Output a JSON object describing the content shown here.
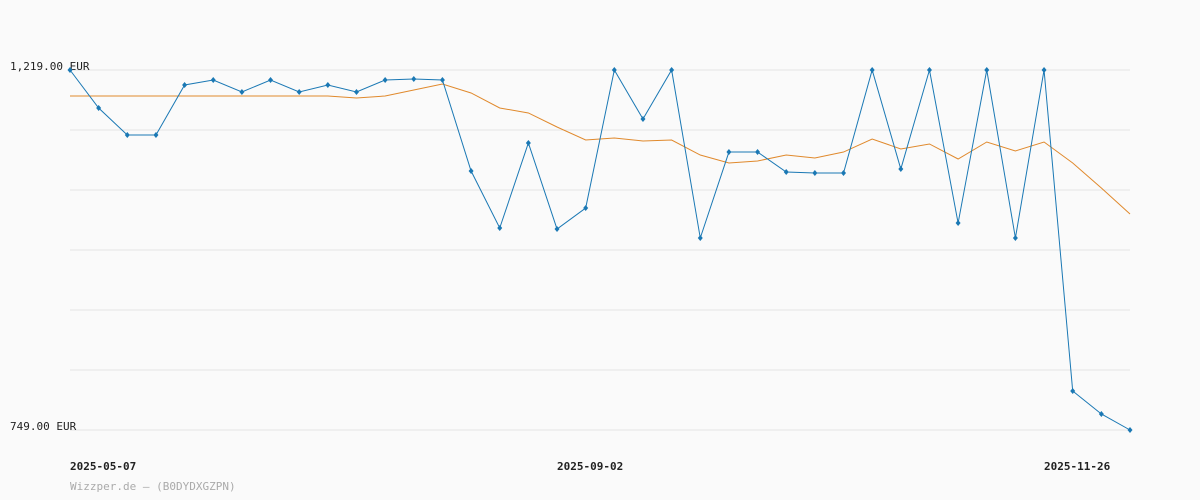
{
  "chart_data": {
    "type": "line",
    "categories": [
      "2025-05-07",
      null,
      null,
      null,
      null,
      null,
      null,
      null,
      null,
      null,
      null,
      null,
      null,
      null,
      null,
      null,
      null,
      "2025-09-02",
      null,
      null,
      null,
      null,
      null,
      null,
      null,
      null,
      null,
      null,
      null,
      null,
      null,
      null,
      null,
      null,
      "2025-11-26",
      null,
      null,
      null
    ],
    "series": [
      {
        "color": "#1a78b4",
        "markers": true,
        "values": [
          1219,
          1169.4,
          1134.1,
          1134.1,
          1199.4,
          1205.9,
          1190.3,
          1205.9,
          1190.3,
          1199.4,
          1190.3,
          1205.9,
          1207.2,
          1205.9,
          1087.1,
          1012.7,
          1123.7,
          1011.4,
          1038.8,
          1219,
          1155,
          1219,
          999.7,
          1111.9,
          1111.9,
          1085.8,
          1084.5,
          1084.5,
          1219,
          1089.7,
          1219,
          1019.2,
          1219,
          999.7,
          1219,
          799.9,
          769.9,
          749
        ]
      },
      {
        "color": "#e0892c",
        "markers": false,
        "values": [
          1185.1,
          1185.1,
          1185.1,
          1185.1,
          1185.1,
          1185.1,
          1185.1,
          1185.1,
          1185.1,
          1185.1,
          1182.4,
          1185.1,
          1192.9,
          1200.7,
          1189,
          1169.4,
          1162.9,
          1144.6,
          1127.6,
          1130.2,
          1126.3,
          1127.6,
          1108,
          1097.6,
          1100.2,
          1108,
          1104.1,
          1111.9,
          1128.9,
          1115.9,
          1122.4,
          1102.8,
          1125,
          1113.3,
          1125,
          1097.6,
          1065,
          1031
        ]
      }
    ],
    "ylim": [
      749,
      1219
    ],
    "yticks": [
      {
        "value": 749,
        "label": "749.00 EUR"
      },
      {
        "value": 1219,
        "label": "1,219.00 EUR"
      }
    ],
    "ygrid": [
      749,
      827.33,
      905.67,
      984,
      1062.33,
      1140.67,
      1219
    ],
    "grid": true,
    "footer": "Wizzper.de – (B0DYDXGZPN)"
  }
}
